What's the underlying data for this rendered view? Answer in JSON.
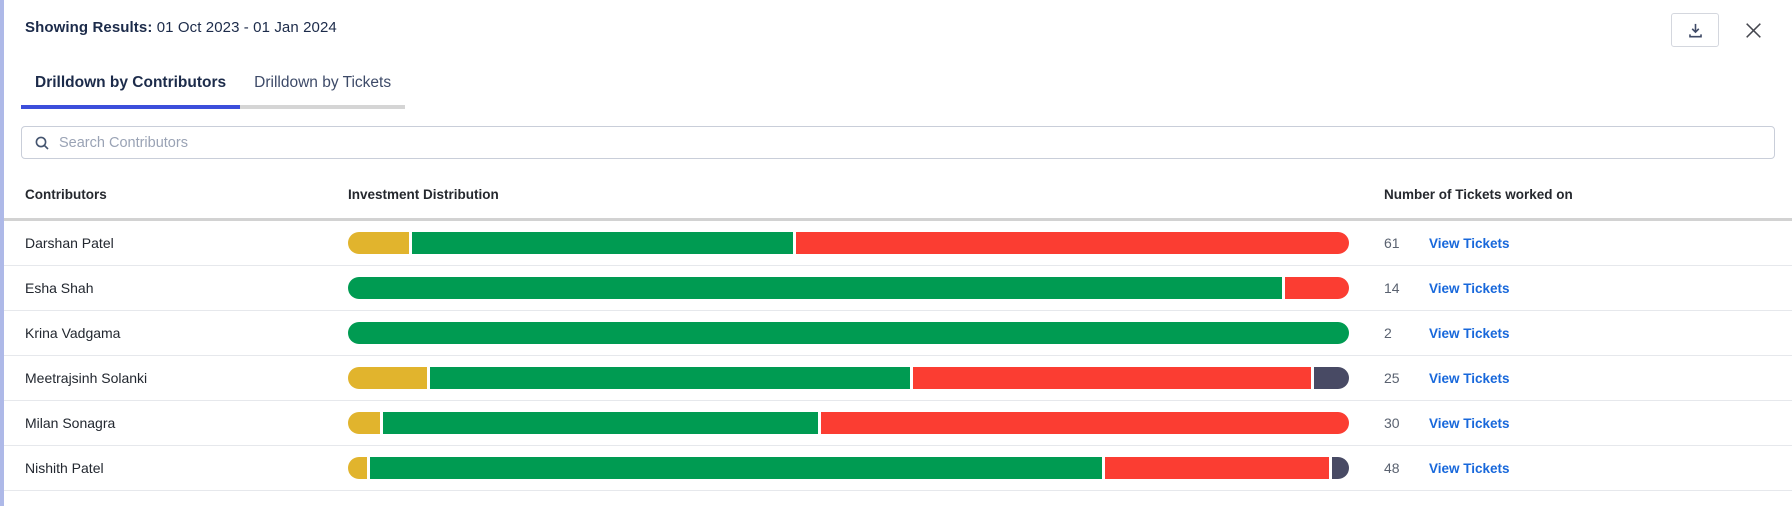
{
  "header": {
    "results_label": "Showing Results:",
    "date_range": "01 Oct 2023 - 01 Jan 2024"
  },
  "icons": {
    "download": "download-icon",
    "close": "close-icon",
    "search": "search-icon"
  },
  "tabs": {
    "contributors": {
      "label": "Drilldown by Contributors",
      "active": true
    },
    "tickets": {
      "label": "Drilldown by Tickets",
      "active": false
    }
  },
  "search": {
    "placeholder": "Search Contributors",
    "value": ""
  },
  "table": {
    "columns": {
      "contributors": "Contributors",
      "distribution": "Investment Distribution",
      "tickets": "Number of Tickets worked on"
    },
    "view_tickets_label": "View Tickets",
    "rows": [
      {
        "name": "Darshan Patel",
        "tickets": "61",
        "segments": [
          {
            "color": "yellow",
            "pct": 6.1
          },
          {
            "color": "green",
            "pct": 37.8
          },
          {
            "color": "red",
            "pct": 55.0
          }
        ]
      },
      {
        "name": "Esha Shah",
        "tickets": "14",
        "segments": [
          {
            "color": "green",
            "pct": 92.9
          },
          {
            "color": "red",
            "pct": 6.4
          }
        ]
      },
      {
        "name": "Krina Vadgama",
        "tickets": "2",
        "segments": [
          {
            "color": "green",
            "pct": 100
          }
        ]
      },
      {
        "name": "Meetrajsinh Solanki",
        "tickets": "25",
        "segments": [
          {
            "color": "yellow",
            "pct": 7.9
          },
          {
            "color": "green",
            "pct": 47.9
          },
          {
            "color": "red",
            "pct": 39.8
          },
          {
            "color": "dark",
            "pct": 3.5
          }
        ]
      },
      {
        "name": "Milan Sonagra",
        "tickets": "30",
        "segments": [
          {
            "color": "yellow",
            "pct": 3.2
          },
          {
            "color": "green",
            "pct": 43.4
          },
          {
            "color": "red",
            "pct": 52.6
          }
        ]
      },
      {
        "name": "Nishith Patel",
        "tickets": "48",
        "segments": [
          {
            "color": "yellow",
            "pct": 1.9
          },
          {
            "color": "green",
            "pct": 73.0
          },
          {
            "color": "red",
            "pct": 22.4
          },
          {
            "color": "dark",
            "pct": 1.7
          }
        ]
      }
    ]
  },
  "colors": {
    "segment_yellow": "#E1B42D",
    "segment_green": "#009B52",
    "segment_red": "#FB3D32",
    "segment_dark": "#484A64",
    "link_blue": "#1868DB",
    "tab_active_underline": "#3C4EDB",
    "panel_left_border": "#AEB9E8"
  }
}
